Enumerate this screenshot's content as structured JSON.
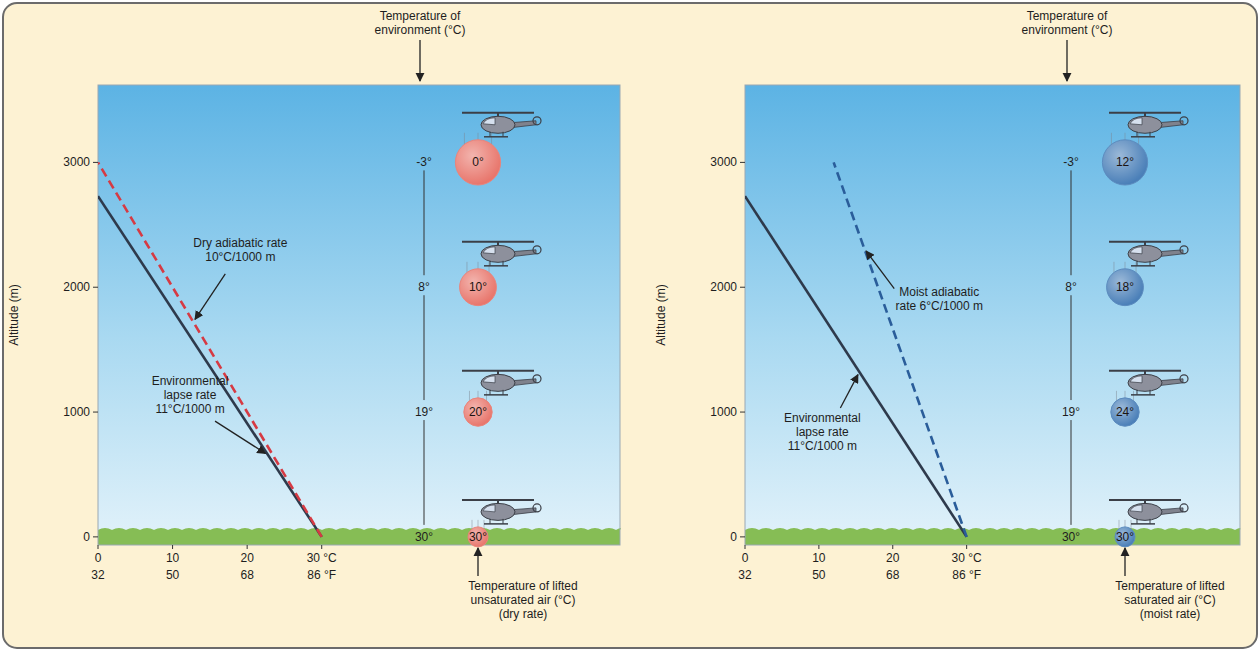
{
  "chart_data": [
    {
      "type": "line",
      "y_label": "Altitude (m)",
      "xlim": [
        0,
        70
      ],
      "xticks": [
        0,
        10,
        20,
        {
          "value": 30,
          "label": "30 °C"
        }
      ],
      "x2lim": [
        32,
        158
      ],
      "x2ticks": [
        32,
        50,
        68,
        {
          "value": 86,
          "label": "86 °F"
        }
      ],
      "ylim": [
        -65,
        3620
      ],
      "yticks": [
        0,
        1000,
        2000,
        3000
      ],
      "grid": false,
      "series": [
        {
          "name": "Environmental lapse rate 11°C/1000 m",
          "x": [
            30,
            0
          ],
          "values": [
            0,
            2730
          ],
          "color": "#2e3a4c",
          "line_style": "solid"
        },
        {
          "name": "Dry adiabatic rate 10°C/1000 m",
          "x": [
            30,
            0
          ],
          "values": [
            0,
            3000
          ],
          "color": "#d63a43",
          "line_style": "dashed"
        }
      ],
      "parcels": {
        "altitude": [
          3000,
          2000,
          1000,
          0
        ],
        "environment": [
          "-3°",
          "8°",
          "19°",
          "30°"
        ],
        "lifted": [
          "0°",
          "10°",
          "20°",
          "30°"
        ],
        "color": "#e8766c"
      },
      "environment_title": "Temperature of environment (°C)",
      "lifted_title": "Temperature of lifted unsaturated air (°C)",
      "lifted_rate": "(dry rate)"
    },
    {
      "type": "line",
      "y_label": "Altitude (m)",
      "xlim": [
        0,
        67
      ],
      "xticks": [
        0,
        10,
        20,
        {
          "value": 30,
          "label": "30 °C"
        }
      ],
      "x2lim": [
        32,
        152.6
      ],
      "x2ticks": [
        32,
        50,
        68,
        {
          "value": 86,
          "label": "86 °F"
        }
      ],
      "ylim": [
        -65,
        3620
      ],
      "yticks": [
        0,
        1000,
        2000,
        3000
      ],
      "grid": false,
      "series": [
        {
          "name": "Environmental lapse rate 11°C/1000 m",
          "x": [
            30,
            0
          ],
          "values": [
            0,
            2730
          ],
          "color": "#2e3a4c",
          "line_style": "solid"
        },
        {
          "name": "Moist adiabatic rate 6°C/1000 m",
          "x": [
            30,
            12
          ],
          "values": [
            0,
            3000
          ],
          "color": "#2a5d9a",
          "line_style": "dashed"
        }
      ],
      "parcels": {
        "altitude": [
          3000,
          2000,
          1000,
          0
        ],
        "environment": [
          "-3°",
          "8°",
          "19°",
          "30°"
        ],
        "lifted": [
          "12°",
          "18°",
          "24°",
          "30°"
        ],
        "color": "#4a7fb8"
      },
      "environment_title": "Temperature of environment (°C)",
      "lifted_title": "Temperature of lifted saturated air (°C)",
      "lifted_rate": "(moist rate)"
    }
  ]
}
